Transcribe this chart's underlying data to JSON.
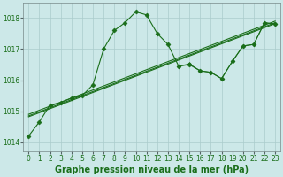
{
  "title": "Graphe pression niveau de la mer (hPa)",
  "bg_color": "#cce8e8",
  "plot_bg_color": "#cce8e8",
  "grid_color": "#aacccc",
  "line_color": "#1a6e1a",
  "xlim": [
    -0.5,
    23.5
  ],
  "ylim": [
    1013.7,
    1018.5
  ],
  "yticks": [
    1014,
    1015,
    1016,
    1017,
    1018
  ],
  "xticks": [
    0,
    1,
    2,
    3,
    4,
    5,
    6,
    7,
    8,
    9,
    10,
    11,
    12,
    13,
    14,
    15,
    16,
    17,
    18,
    19,
    20,
    21,
    22,
    23
  ],
  "series": [
    {
      "x": [
        0,
        1,
        2,
        3,
        4,
        5,
        6,
        7,
        8,
        9,
        10,
        11,
        12,
        13,
        14,
        15,
        16,
        17,
        18,
        19,
        20,
        21,
        22,
        23
      ],
      "y": [
        1014.2,
        1014.65,
        1015.2,
        1015.28,
        1015.42,
        1015.5,
        1015.85,
        1017.0,
        1017.6,
        1017.85,
        1018.2,
        1018.1,
        1017.5,
        1017.15,
        1016.45,
        1016.5,
        1016.3,
        1016.25,
        1016.05,
        1016.6,
        1017.1,
        1017.15,
        1017.85,
        1017.8
      ],
      "style": "solid",
      "marker": "D",
      "markersize": 2.5,
      "linewidth": 0.8
    },
    {
      "x": [
        0,
        23
      ],
      "y": [
        1014.85,
        1017.85
      ],
      "style": "solid",
      "marker": null,
      "markersize": 0,
      "linewidth": 0.8
    },
    {
      "x": [
        0,
        23
      ],
      "y": [
        1014.9,
        1017.9
      ],
      "style": "solid",
      "marker": null,
      "markersize": 0,
      "linewidth": 0.8
    },
    {
      "x": [
        0,
        23
      ],
      "y": [
        1014.82,
        1017.82
      ],
      "style": "solid",
      "marker": null,
      "markersize": 0,
      "linewidth": 0.8
    },
    {
      "x": [
        14,
        15,
        16,
        17,
        18,
        19,
        20,
        21,
        22,
        23
      ],
      "y": [
        1016.45,
        1016.52,
        1016.3,
        1016.25,
        1016.05,
        1016.6,
        1017.1,
        1017.15,
        1017.85,
        1017.8
      ],
      "style": "solid",
      "marker": "D",
      "markersize": 2,
      "linewidth": 0.7
    }
  ],
  "xlabel_fontsize": 7,
  "tick_fontsize": 5.5
}
